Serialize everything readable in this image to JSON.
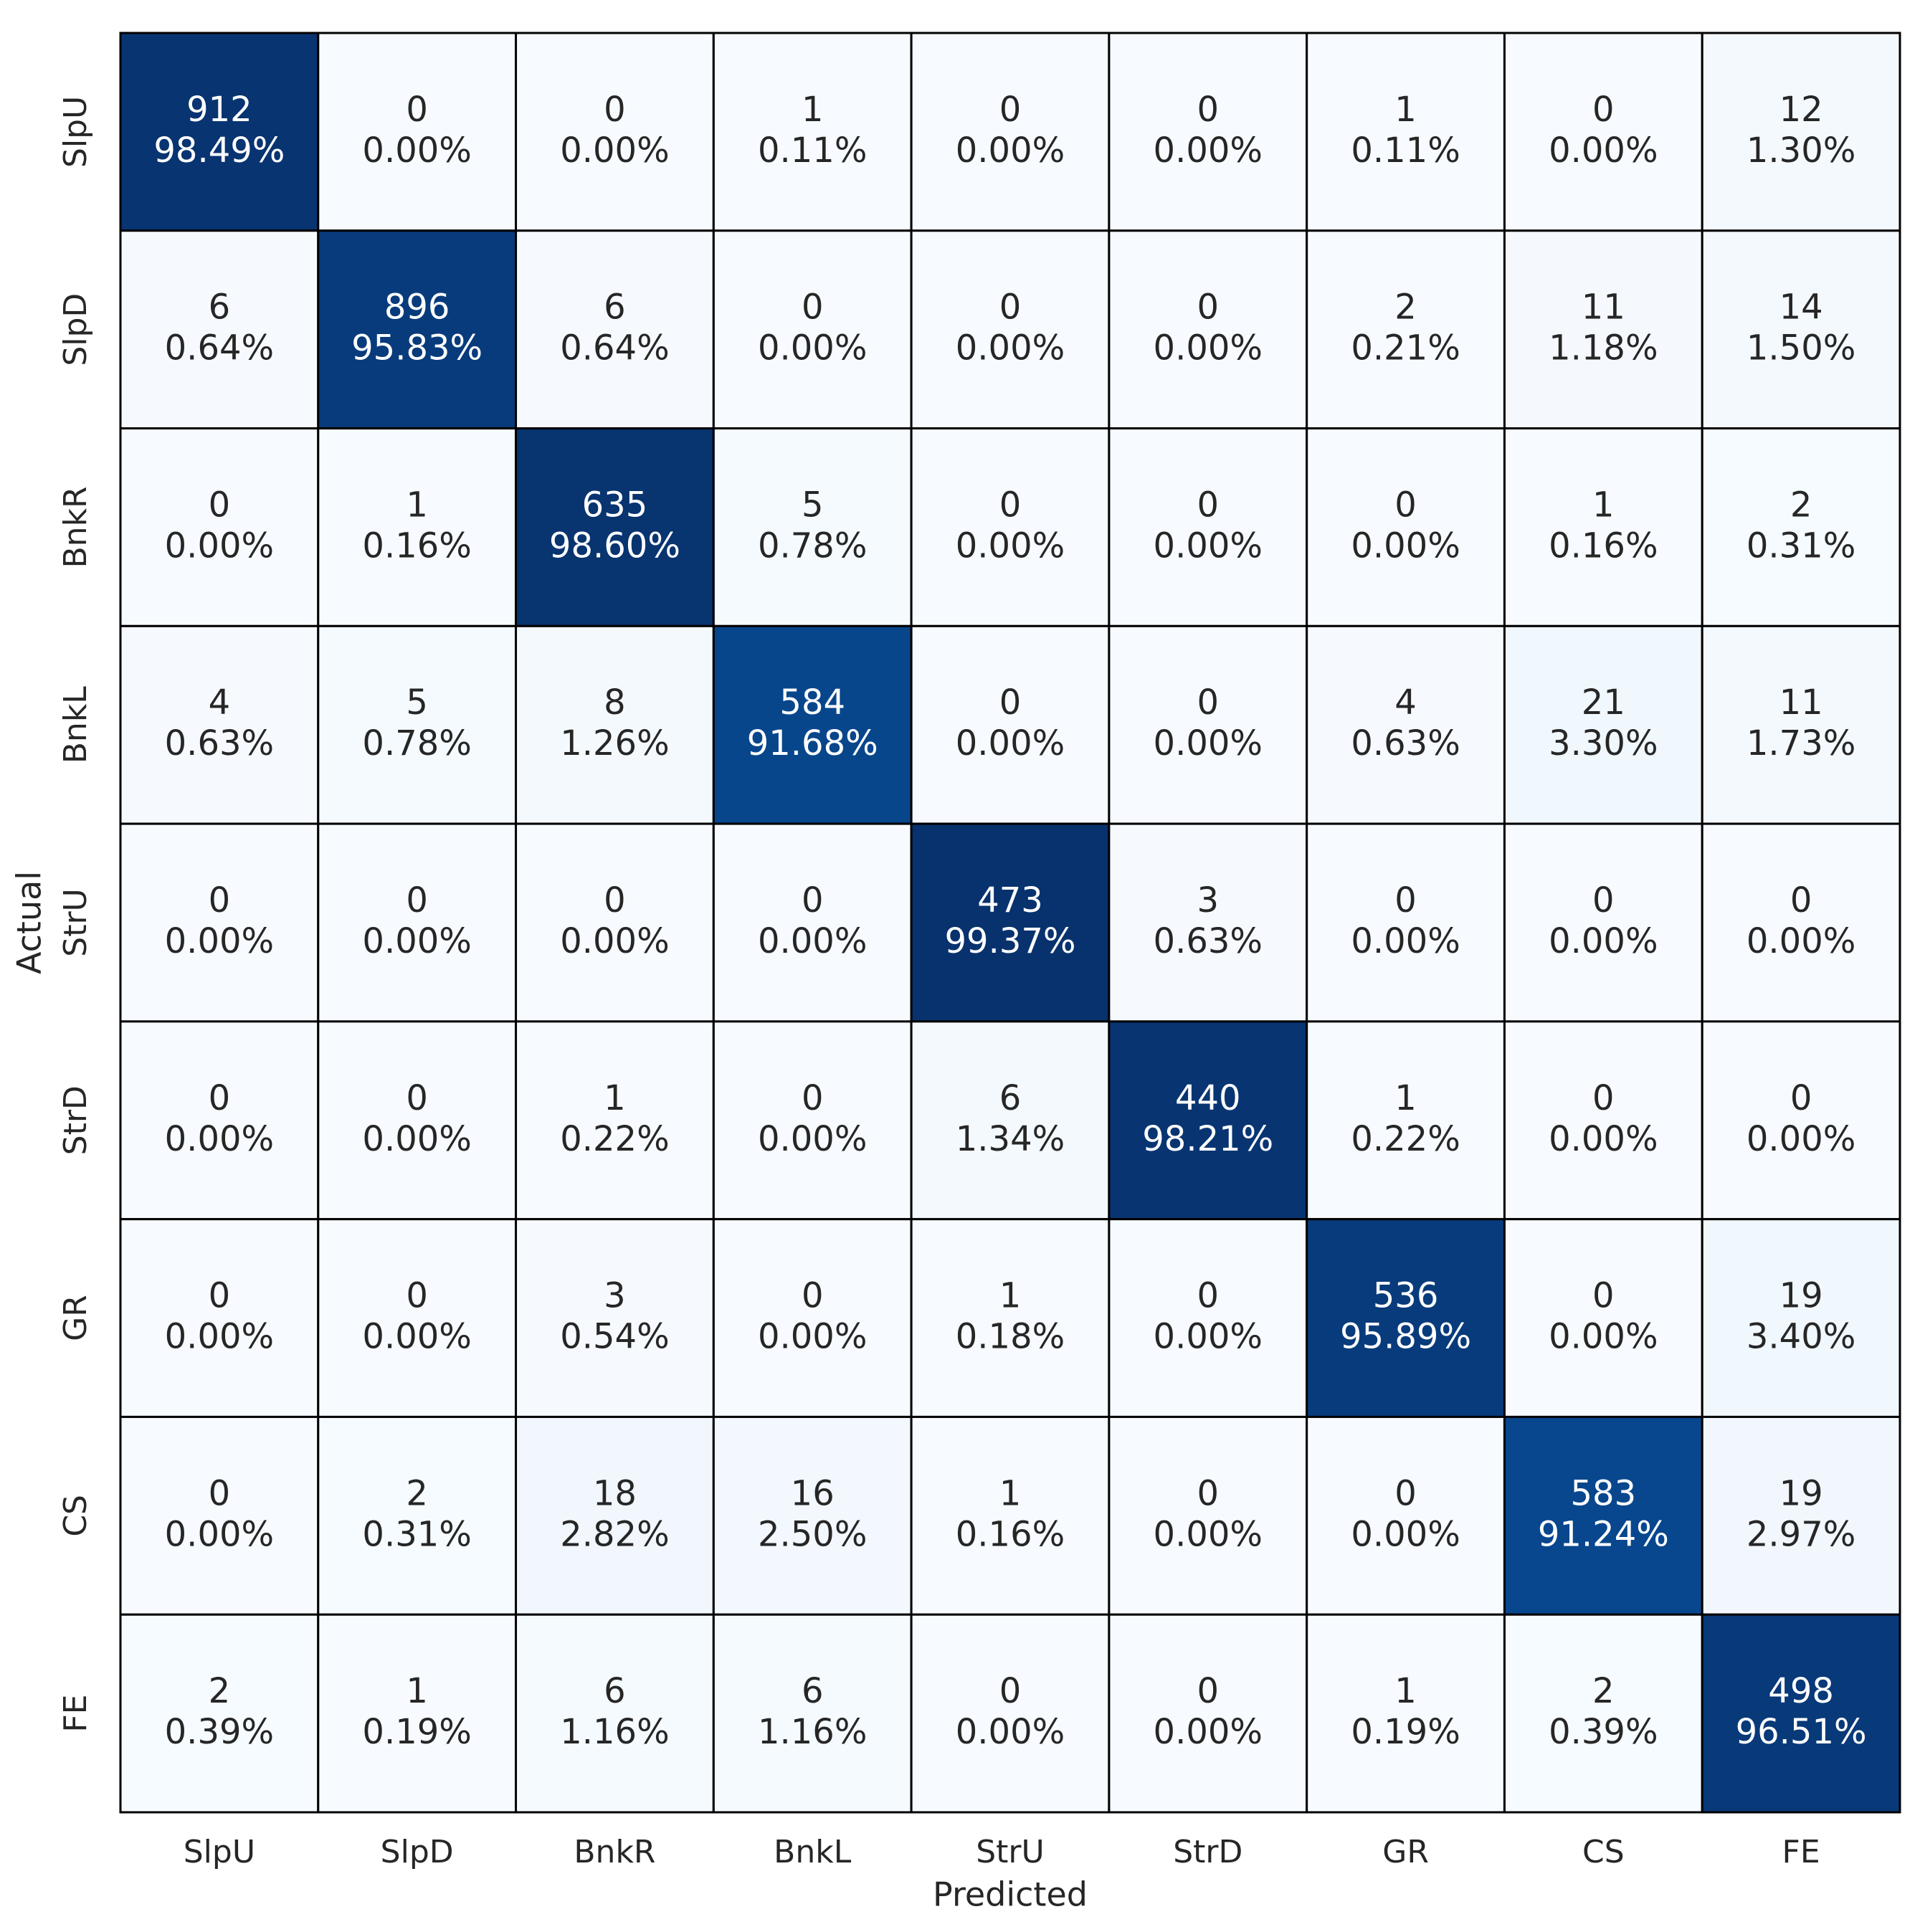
{
  "chart_data": {
    "type": "heatmap",
    "x_label": "Predicted",
    "y_label": "Actual",
    "x_categories": [
      "SlpU",
      "SlpD",
      "BnkR",
      "BnkL",
      "StrU",
      "StrD",
      "GR",
      "CS",
      "FE"
    ],
    "y_categories": [
      "SlpU",
      "SlpD",
      "BnkR",
      "BnkL",
      "StrU",
      "StrD",
      "GR",
      "CS",
      "FE"
    ],
    "values": [
      [
        912,
        0,
        0,
        1,
        0,
        0,
        1,
        0,
        12
      ],
      [
        6,
        896,
        6,
        0,
        0,
        0,
        2,
        11,
        14
      ],
      [
        0,
        1,
        635,
        5,
        0,
        0,
        0,
        1,
        2
      ],
      [
        4,
        5,
        8,
        584,
        0,
        0,
        4,
        21,
        11
      ],
      [
        0,
        0,
        0,
        0,
        473,
        3,
        0,
        0,
        0
      ],
      [
        0,
        0,
        1,
        0,
        6,
        440,
        1,
        0,
        0
      ],
      [
        0,
        0,
        3,
        0,
        1,
        0,
        536,
        0,
        19
      ],
      [
        0,
        2,
        18,
        16,
        1,
        0,
        0,
        583,
        19
      ],
      [
        2,
        1,
        6,
        6,
        0,
        0,
        1,
        2,
        498
      ]
    ],
    "percents": [
      [
        98.49,
        0,
        0,
        0.11,
        0,
        0,
        0.11,
        0,
        1.3
      ],
      [
        0.64,
        95.83,
        0.64,
        0,
        0,
        0,
        0.21,
        1.18,
        1.5
      ],
      [
        0,
        0.16,
        98.6,
        0.78,
        0,
        0,
        0,
        0.16,
        0.31
      ],
      [
        0.63,
        0.78,
        1.26,
        91.68,
        0,
        0,
        0.63,
        3.3,
        1.73
      ],
      [
        0,
        0,
        0,
        0,
        99.37,
        0.63,
        0,
        0,
        0
      ],
      [
        0,
        0,
        0.22,
        0,
        1.34,
        98.21,
        0.22,
        0,
        0
      ],
      [
        0,
        0,
        0.54,
        0,
        0.18,
        0,
        95.89,
        0,
        3.4
      ],
      [
        0,
        0.31,
        2.82,
        2.5,
        0.16,
        0,
        0,
        91.24,
        2.97
      ],
      [
        0.39,
        0.19,
        1.16,
        1.16,
        0,
        0,
        0.19,
        0.39,
        96.51
      ]
    ],
    "percent_labels": [
      [
        "98.49%",
        "0.00%",
        "0.00%",
        "0.11%",
        "0.00%",
        "0.00%",
        "0.11%",
        "0.00%",
        "1.30%"
      ],
      [
        "0.64%",
        "95.83%",
        "0.64%",
        "0.00%",
        "0.00%",
        "0.00%",
        "0.21%",
        "1.18%",
        "1.50%"
      ],
      [
        "0.00%",
        "0.16%",
        "98.60%",
        "0.78%",
        "0.00%",
        "0.00%",
        "0.00%",
        "0.16%",
        "0.31%"
      ],
      [
        "0.63%",
        "0.78%",
        "1.26%",
        "91.68%",
        "0.00%",
        "0.00%",
        "0.63%",
        "3.30%",
        "1.73%"
      ],
      [
        "0.00%",
        "0.00%",
        "0.00%",
        "0.00%",
        "99.37%",
        "0.63%",
        "0.00%",
        "0.00%",
        "0.00%"
      ],
      [
        "0.00%",
        "0.00%",
        "0.22%",
        "0.00%",
        "1.34%",
        "98.21%",
        "0.22%",
        "0.00%",
        "0.00%"
      ],
      [
        "0.00%",
        "0.00%",
        "0.54%",
        "0.00%",
        "0.18%",
        "0.00%",
        "95.89%",
        "0.00%",
        "3.40%"
      ],
      [
        "0.00%",
        "0.31%",
        "2.82%",
        "2.50%",
        "0.16%",
        "0.00%",
        "0.00%",
        "91.24%",
        "2.97%"
      ],
      [
        "0.39%",
        "0.19%",
        "1.16%",
        "1.16%",
        "0.00%",
        "0.00%",
        "0.19%",
        "0.39%",
        "96.51%"
      ]
    ],
    "clim": [
      0,
      100
    ],
    "colormap": [
      "#f7fbff",
      "#deebf7",
      "#c6dbef",
      "#9ecae1",
      "#6baed6",
      "#4292c6",
      "#2171b5",
      "#08519c",
      "#08306b"
    ]
  }
}
